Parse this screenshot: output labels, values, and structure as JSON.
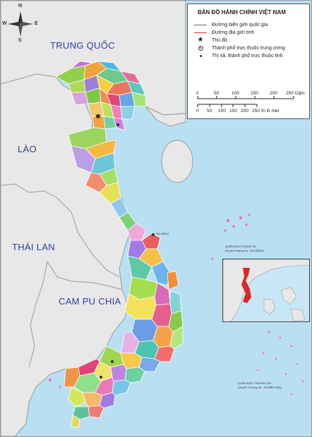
{
  "countries": {
    "china": "TRUNG QUỐC",
    "laos": "LÀO",
    "thailand": "THÁI LAN",
    "cambodia": "CAM PU CHIA"
  },
  "compass": {
    "n": "N",
    "s": "S",
    "e": "E",
    "w": "W"
  },
  "legend": {
    "title": "BẢN ĐỒ HÀNH CHÍNH VIỆT NAM",
    "national_border": "Đường biên giới quốc gia",
    "provincial_border": "Đường địa giới tỉnh",
    "capital": "Thủ đô",
    "central_city": "Thành phố trực thuộc trung ương",
    "provincial_city": "Thị xã, thành phố trực thuộc tỉnh",
    "scale_miles": {
      "ticks": [
        "0",
        "50",
        "100",
        "150",
        "200",
        "250"
      ],
      "unit": "Dặm"
    },
    "scale_km": {
      "ticks": [
        "0",
        "50",
        "100",
        "150",
        "200",
        "250"
      ],
      "unit": "Ki lô mét"
    }
  },
  "places": {
    "da_nang": "ĐÀ NẴNG",
    "hoang_sa": "QUẦN ĐẢO HOÀNG SA",
    "hoang_sa_sub": "(Huyện Hoàng Sa - ĐÀ NẴNG)",
    "truong_sa": "QUẦN ĐẢO TRƯỜNG SA",
    "truong_sa_sub": "(Huyện Trường Sa - KHÁNH HÒA)"
  },
  "colors": {
    "sea": "#b9dff2",
    "land_neighbor": "#e8e8e8",
    "border_neighbor": "#9a9a9a",
    "province_border": "#ffffff",
    "country_label": "#2b3fa8",
    "inset_highlight": "#d42a2a"
  }
}
